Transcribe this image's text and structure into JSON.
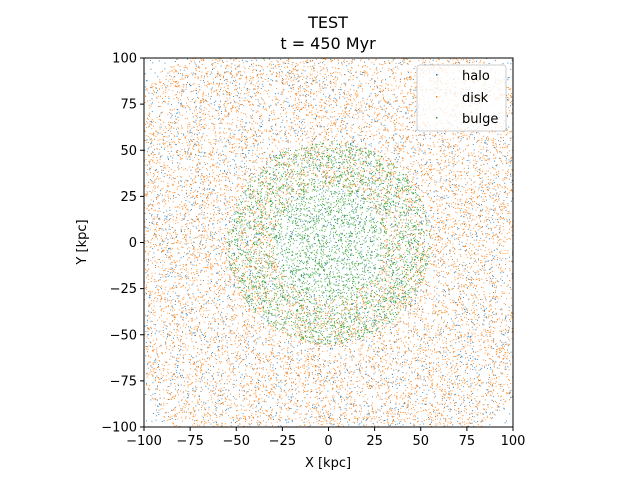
{
  "chart_data": {
    "type": "scatter",
    "title": "TEST",
    "subtitle": "t = 450 Myr",
    "xlabel": "X [kpc]",
    "ylabel": "Y [kpc]",
    "xlim": [
      -100,
      100
    ],
    "ylim": [
      -100,
      100
    ],
    "xticks": [
      -100,
      -75,
      -50,
      -25,
      0,
      25,
      50,
      75,
      100
    ],
    "yticks": [
      -100,
      -75,
      -50,
      -25,
      0,
      25,
      50,
      75,
      100
    ],
    "grid": false,
    "legend": "top-right",
    "series": [
      {
        "name": "halo",
        "color": "#1f77b4",
        "marker": "point",
        "distribution": "uniform",
        "radius_range": [
          0,
          140
        ],
        "approx_count": 4000
      },
      {
        "name": "disk",
        "color": "#ff7f0e",
        "marker": "point",
        "distribution": "ring",
        "radius_range": [
          30,
          130
        ],
        "approx_count": 14000
      },
      {
        "name": "bulge",
        "color": "#2ca02c",
        "marker": "point",
        "distribution": "ring",
        "radius_range": [
          0,
          55
        ],
        "approx_count": 4000
      }
    ]
  }
}
